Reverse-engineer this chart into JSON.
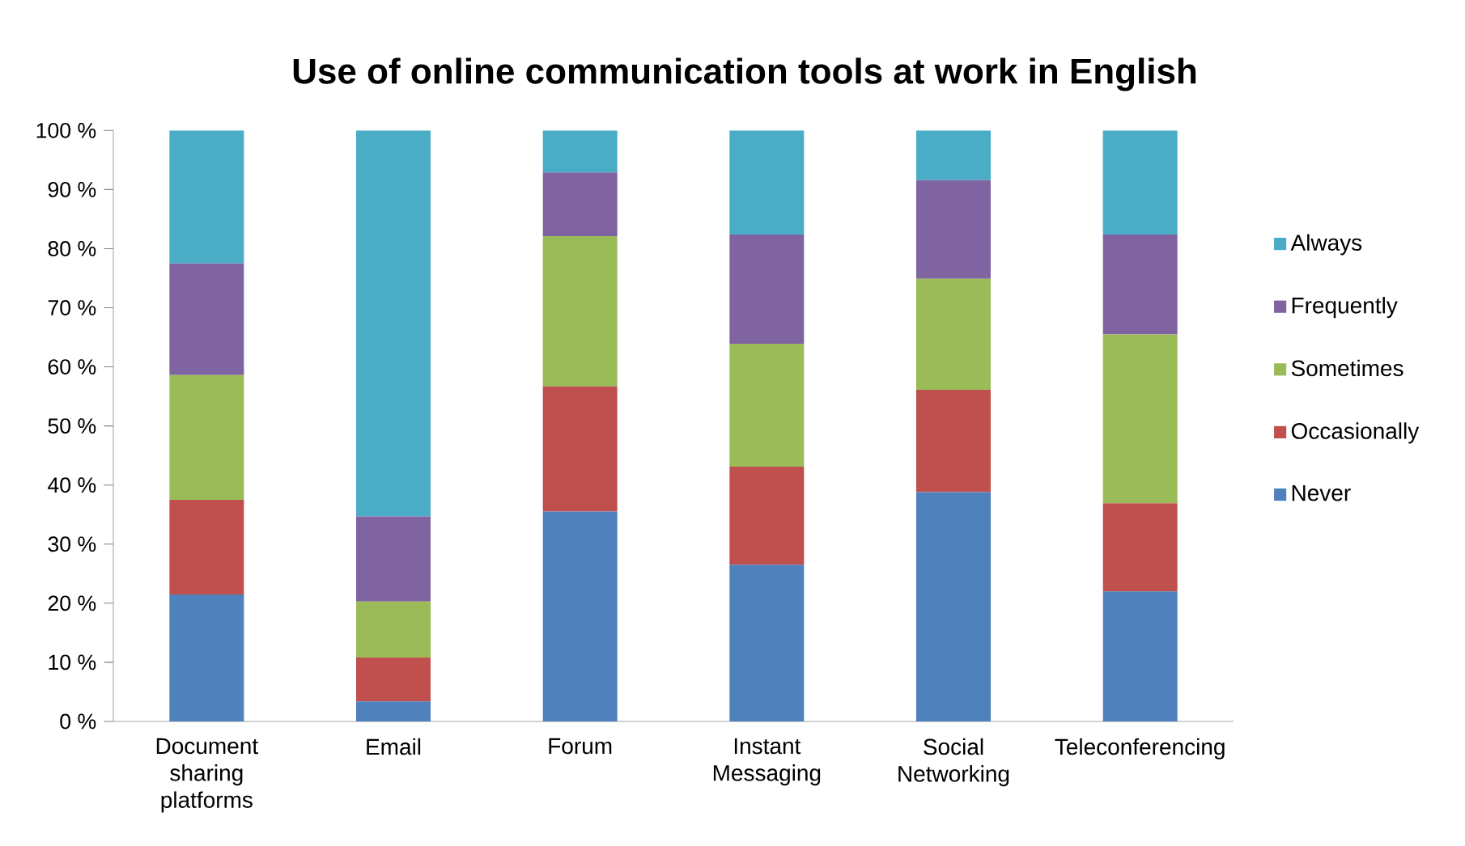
{
  "chart_data": {
    "type": "bar",
    "stacked": true,
    "title": "Use of online communication tools at work in English",
    "categories": [
      "Document sharing platforms",
      "Email",
      "Forum",
      "Instant Messaging",
      "Social Networking",
      "Teleconferencing"
    ],
    "series": [
      {
        "name": "Never",
        "color": "#4f81bd",
        "values": [
          21.5,
          3.4,
          35.5,
          26.5,
          38.8,
          22.0
        ]
      },
      {
        "name": "Occasionally",
        "color": "#c0504d",
        "values": [
          16.0,
          7.4,
          21.2,
          16.6,
          17.3,
          14.9
        ]
      },
      {
        "name": "Sometimes",
        "color": "#9bbb59",
        "values": [
          21.1,
          9.5,
          25.4,
          20.8,
          18.8,
          28.6
        ]
      },
      {
        "name": "Frequently",
        "color": "#8064a2",
        "values": [
          18.9,
          14.4,
          10.8,
          18.5,
          16.7,
          16.9
        ]
      },
      {
        "name": "Always",
        "color": "#4bacc6",
        "values": [
          22.5,
          65.3,
          7.1,
          17.6,
          8.4,
          17.6
        ]
      }
    ],
    "ylim": [
      0,
      100
    ],
    "yticks": [
      {
        "value": 0,
        "label": "0 %"
      },
      {
        "value": 10,
        "label": "10 %"
      },
      {
        "value": 20,
        "label": "20 %"
      },
      {
        "value": 30,
        "label": "30 %"
      },
      {
        "value": 40,
        "label": "40 %"
      },
      {
        "value": 50,
        "label": "50 %"
      },
      {
        "value": 60,
        "label": "60 %"
      },
      {
        "value": 70,
        "label": "70 %"
      },
      {
        "value": 80,
        "label": "80 %"
      },
      {
        "value": 90,
        "label": "90 %"
      },
      {
        "value": 100,
        "label": "100 %"
      }
    ],
    "grid": false,
    "legend": "right"
  }
}
